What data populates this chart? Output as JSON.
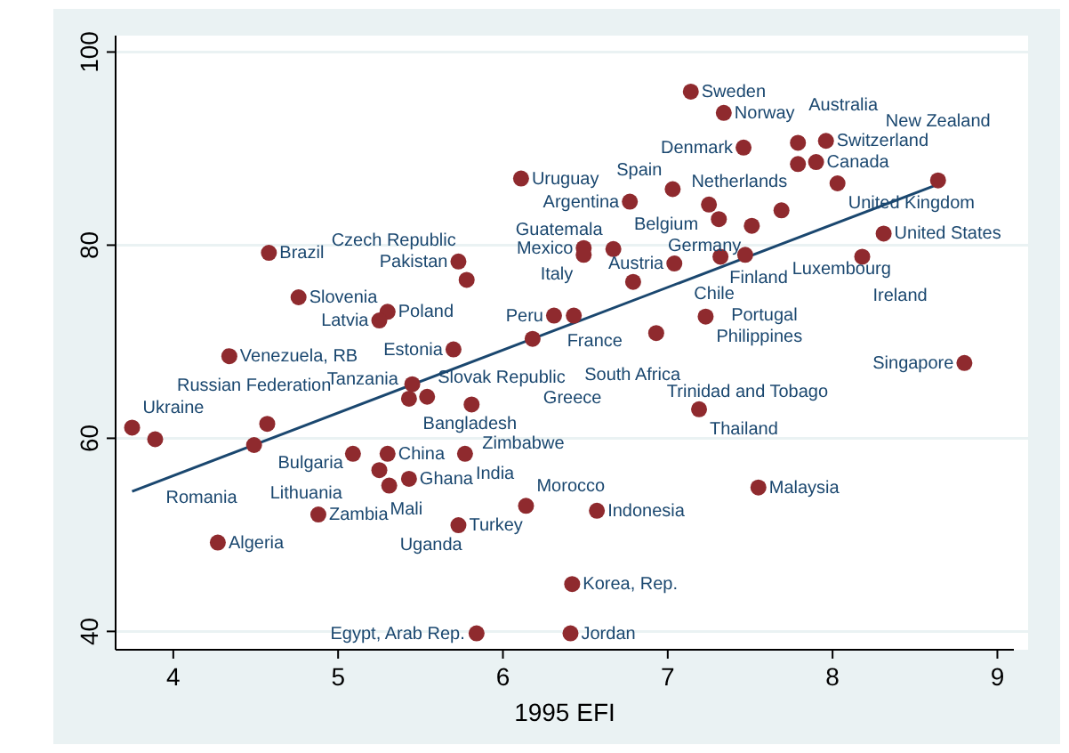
{
  "chart_data": {
    "type": "scatter",
    "xlabel": "1995 EFI",
    "xlim": [
      3.65,
      9.1
    ],
    "ylim": [
      38.1,
      101.7
    ],
    "xticks": [
      4,
      5,
      6,
      7,
      8,
      9
    ],
    "yticks": [
      40,
      60,
      80,
      100
    ],
    "grid": "y",
    "series": [
      {
        "marker": "circle",
        "color": "#8f2a2e",
        "x": [
          7.14,
          7.34,
          7.46,
          7.79,
          7.96,
          7.9,
          7.79,
          8.03,
          8.64,
          6.11,
          7.03,
          6.77,
          7.25,
          7.69,
          7.31,
          7.51,
          8.31,
          6.49,
          6.49,
          6.67,
          7.04,
          7.32,
          7.47,
          8.18,
          6.79,
          5.78,
          5.73,
          4.58,
          4.76,
          5.3,
          5.25,
          4.34,
          5.7,
          6.31,
          6.43,
          6.18,
          7.23,
          6.93,
          8.8,
          7.19,
          5.45,
          5.43,
          5.54,
          5.81,
          3.75,
          3.89,
          4.57,
          4.49,
          5.09,
          5.3,
          5.25,
          5.43,
          5.31,
          5.77,
          4.88,
          4.27,
          5.73,
          6.14,
          6.57,
          7.55,
          6.42,
          5.84,
          6.41
        ],
        "values": [
          95.9,
          93.7,
          90.1,
          90.6,
          90.8,
          88.6,
          88.4,
          86.4,
          86.7,
          86.9,
          85.8,
          84.5,
          84.2,
          83.6,
          82.7,
          82,
          81.2,
          79.7,
          79,
          79.6,
          78.1,
          78.8,
          79,
          78.8,
          76.2,
          76.4,
          78.3,
          79.2,
          74.6,
          73.1,
          72.2,
          68.5,
          69.2,
          72.7,
          72.7,
          70.3,
          72.6,
          70.9,
          67.8,
          63,
          65.6,
          64.1,
          64.3,
          63.5,
          61.1,
          59.9,
          61.5,
          59.3,
          58.4,
          58.4,
          56.7,
          55.8,
          55.1,
          58.4,
          52.1,
          49.2,
          51,
          53,
          52.5,
          54.9,
          44.9,
          39.8,
          39.8
        ]
      },
      {
        "type": "line",
        "color": "#1a476f",
        "x": [
          3.75,
          8.64
        ],
        "values": [
          54.5,
          86.3
        ]
      }
    ],
    "annotations": [
      {
        "text": "Sweden",
        "x": 7.14,
        "y": 95.9
      },
      {
        "text": "Norway",
        "x": 7.34,
        "y": 93.7
      },
      {
        "text": "Denmark",
        "x": 7.46,
        "y": 90.1
      },
      {
        "text": "Netherlands",
        "x": 7.79,
        "y": 90.6
      },
      {
        "text": "Switzerland",
        "x": 7.96,
        "y": 90.8
      },
      {
        "text": "Canada",
        "x": 7.9,
        "y": 88.6
      },
      {
        "text": "Australia",
        "x": 7.79,
        "y": 88.4
      },
      {
        "text": "United Kingdom",
        "x": 8.03,
        "y": 86.4
      },
      {
        "text": "New Zealand",
        "x": 8.64,
        "y": 86.7
      },
      {
        "text": "Uruguay",
        "x": 6.11,
        "y": 86.9
      },
      {
        "text": "Spain",
        "x": 7.03,
        "y": 85.8
      },
      {
        "text": "Argentina",
        "x": 6.77,
        "y": 84.5
      },
      {
        "text": "Belgium",
        "x": 7.25,
        "y": 84.2
      },
      {
        "text": "Luxembourg",
        "x": 7.69,
        "y": 83.6
      },
      {
        "text": "Finland",
        "x": 7.31,
        "y": 82.7
      },
      {
        "text": "Germany",
        "x": 7.51,
        "y": 82
      },
      {
        "text": "United States",
        "x": 8.31,
        "y": 81.2
      },
      {
        "text": "Mexico",
        "x": 6.49,
        "y": 79.7
      },
      {
        "text": "Italy",
        "x": 6.49,
        "y": 79
      },
      {
        "text": "Guatemala",
        "x": 6.67,
        "y": 79.6
      },
      {
        "text": "Austria",
        "x": 7.04,
        "y": 78.1
      },
      {
        "text": "Portugal",
        "x": 7.32,
        "y": 78.8
      },
      {
        "text": "Chile",
        "x": 7.47,
        "y": 79
      },
      {
        "text": "Ireland",
        "x": 8.18,
        "y": 78.8
      },
      {
        "text": "France",
        "x": 6.79,
        "y": 76.2
      },
      {
        "text": "Czech Republic",
        "x": 5.78,
        "y": 76.4
      },
      {
        "text": "Pakistan",
        "x": 5.73,
        "y": 78.3
      },
      {
        "text": "Brazil",
        "x": 4.58,
        "y": 79.2
      },
      {
        "text": "Slovenia",
        "x": 4.76,
        "y": 74.6
      },
      {
        "text": "Poland",
        "x": 5.3,
        "y": 73.1
      },
      {
        "text": "Latvia",
        "x": 5.25,
        "y": 72.2
      },
      {
        "text": "Venezuela, RB",
        "x": 4.34,
        "y": 68.5
      },
      {
        "text": "Estonia",
        "x": 5.7,
        "y": 69.2
      },
      {
        "text": "Peru",
        "x": 6.31,
        "y": 72.7
      },
      {
        "text": "South Africa",
        "x": 6.43,
        "y": 72.7
      },
      {
        "text": "Greece",
        "x": 6.18,
        "y": 70.3
      },
      {
        "text": "Philippines",
        "x": 7.23,
        "y": 72.6
      },
      {
        "text": "Trinidad and Tobago",
        "x": 6.93,
        "y": 70.9
      },
      {
        "text": "Singapore",
        "x": 8.8,
        "y": 67.8
      },
      {
        "text": "Thailand",
        "x": 7.19,
        "y": 63
      },
      {
        "text": "Bangladesh",
        "x": 5.45,
        "y": 65.6
      },
      {
        "text": "Tanzania",
        "x": 5.43,
        "y": 64.1
      },
      {
        "text": "Slovak Republic",
        "x": 5.54,
        "y": 64.3
      },
      {
        "text": "Zimbabwe",
        "x": 5.81,
        "y": 63.5
      },
      {
        "text": "Ukraine",
        "x": 3.75,
        "y": 61.1
      },
      {
        "text": "Romania",
        "x": 3.89,
        "y": 59.9
      },
      {
        "text": "Bulgaria",
        "x": 4.57,
        "y": 61.5
      },
      {
        "text": "Russian Federation",
        "x": 4.49,
        "y": 59.3
      },
      {
        "text": "Lithuania",
        "x": 5.09,
        "y": 58.4
      },
      {
        "text": "China",
        "x": 5.3,
        "y": 58.4
      },
      {
        "text": "Mali",
        "x": 5.25,
        "y": 56.7
      },
      {
        "text": "Ghana",
        "x": 5.43,
        "y": 55.8
      },
      {
        "text": "Uganda",
        "x": 5.31,
        "y": 55.1
      },
      {
        "text": "India",
        "x": 5.77,
        "y": 58.4
      },
      {
        "text": "Zambia",
        "x": 4.88,
        "y": 52.1
      },
      {
        "text": "Algeria",
        "x": 4.27,
        "y": 49.2
      },
      {
        "text": "Turkey",
        "x": 5.73,
        "y": 51
      },
      {
        "text": "Morocco",
        "x": 6.14,
        "y": 53
      },
      {
        "text": "Indonesia",
        "x": 6.57,
        "y": 52.5
      },
      {
        "text": "Malaysia",
        "x": 7.55,
        "y": 54.9
      },
      {
        "text": "Korea, Rep.",
        "x": 6.42,
        "y": 44.9
      },
      {
        "text": "Egypt, Arab Rep.",
        "x": 5.84,
        "y": 39.8
      },
      {
        "text": "Jordan",
        "x": 6.41,
        "y": 39.8
      }
    ]
  }
}
